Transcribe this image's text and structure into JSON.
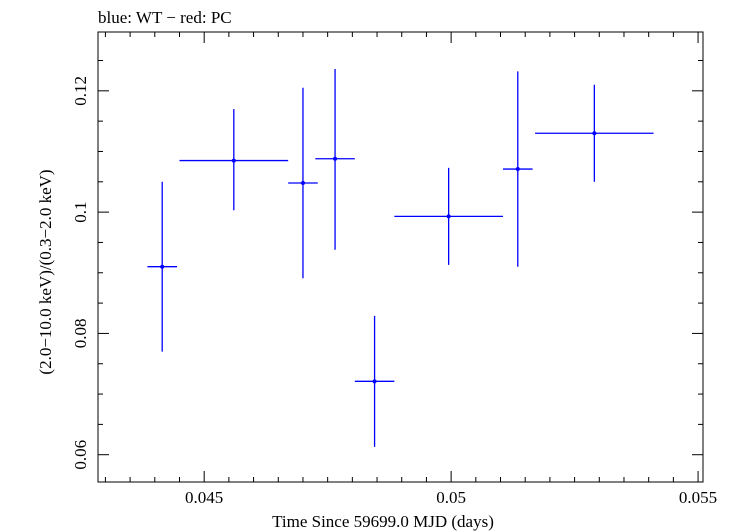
{
  "chart_data": {
    "type": "scatter",
    "title": "blue: WT − red: PC",
    "xlabel": "Time Since 59699.0 MJD (days)",
    "ylabel": "(2.0−10.0 keV)/(0.3−2.0 keV)",
    "xlim": [
      0.04285,
      0.0551
    ],
    "ylim": [
      0.0555,
      0.1297
    ],
    "x_ticks": [
      {
        "value": 0.045,
        "label": "0.045"
      },
      {
        "value": 0.05,
        "label": "0.05"
      },
      {
        "value": 0.055,
        "label": "0.055"
      }
    ],
    "y_ticks": [
      {
        "value": 0.06,
        "label": "0.06"
      },
      {
        "value": 0.08,
        "label": "0.08"
      },
      {
        "value": 0.1,
        "label": "0.1"
      },
      {
        "value": 0.12,
        "label": "0.12"
      }
    ],
    "grid": false,
    "series": [
      {
        "name": "WT",
        "color": "#0000ff",
        "points": [
          {
            "x": 0.04415,
            "y": 0.091,
            "xerr_lo": 0.0003,
            "xerr_hi": 0.0003,
            "yerr_lo": 0.014,
            "yerr_hi": 0.014
          },
          {
            "x": 0.0456,
            "y": 0.1085,
            "xerr_lo": 0.0011,
            "xerr_hi": 0.0011,
            "yerr_lo": 0.0082,
            "yerr_hi": 0.0085
          },
          {
            "x": 0.047,
            "y": 0.1048,
            "xerr_lo": 0.0003,
            "xerr_hi": 0.0003,
            "yerr_lo": 0.0157,
            "yerr_hi": 0.0157
          },
          {
            "x": 0.04765,
            "y": 0.1088,
            "xerr_lo": 0.0004,
            "xerr_hi": 0.0004,
            "yerr_lo": 0.015,
            "yerr_hi": 0.0148
          },
          {
            "x": 0.04845,
            "y": 0.0721,
            "xerr_lo": 0.0004,
            "xerr_hi": 0.0004,
            "yerr_lo": 0.0108,
            "yerr_hi": 0.0108
          },
          {
            "x": 0.04995,
            "y": 0.0993,
            "xerr_lo": 0.0011,
            "xerr_hi": 0.0011,
            "yerr_lo": 0.008,
            "yerr_hi": 0.008
          },
          {
            "x": 0.05135,
            "y": 0.1071,
            "xerr_lo": 0.0003,
            "xerr_hi": 0.0003,
            "yerr_lo": 0.0161,
            "yerr_hi": 0.0161
          },
          {
            "x": 0.0529,
            "y": 0.113,
            "xerr_lo": 0.0012,
            "xerr_hi": 0.0012,
            "yerr_lo": 0.008,
            "yerr_hi": 0.008
          }
        ]
      }
    ]
  }
}
